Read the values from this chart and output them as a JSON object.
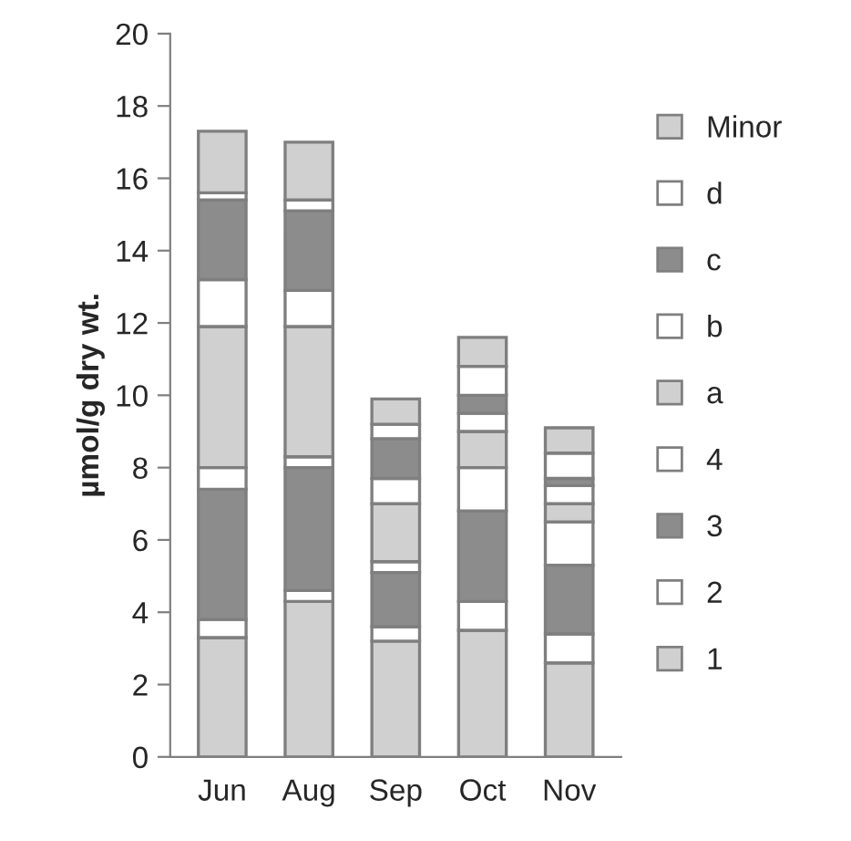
{
  "chart_data": {
    "type": "bar",
    "stacked": true,
    "ylabel": "µmol/g dry wt.",
    "categories": [
      "Jun",
      "Aug",
      "Sep",
      "Oct",
      "Nov"
    ],
    "series": [
      {
        "name": "1",
        "color": "#d0d0d0",
        "values": [
          3.3,
          4.3,
          3.2,
          3.5,
          2.6
        ]
      },
      {
        "name": "2",
        "color": "#ffffff",
        "values": [
          0.5,
          0.3,
          0.4,
          0.8,
          0.8
        ]
      },
      {
        "name": "3",
        "color": "#8c8c8c",
        "values": [
          3.6,
          3.4,
          1.5,
          2.5,
          1.9
        ]
      },
      {
        "name": "4",
        "color": "#ffffff",
        "values": [
          0.6,
          0.3,
          0.3,
          1.2,
          1.2
        ]
      },
      {
        "name": "a",
        "color": "#d0d0d0",
        "values": [
          3.9,
          3.6,
          1.6,
          1.0,
          0.5
        ]
      },
      {
        "name": "b",
        "color": "#ffffff",
        "values": [
          1.3,
          1.0,
          0.7,
          0.5,
          0.5
        ]
      },
      {
        "name": "c",
        "color": "#8c8c8c",
        "values": [
          2.2,
          2.2,
          1.1,
          0.5,
          0.2
        ]
      },
      {
        "name": "d",
        "color": "#ffffff",
        "values": [
          0.2,
          0.3,
          0.4,
          0.8,
          0.7
        ]
      },
      {
        "name": "Minor",
        "color": "#d0d0d0",
        "values": [
          1.7,
          1.6,
          0.7,
          0.8,
          0.7
        ]
      }
    ],
    "ylim": [
      0,
      20
    ],
    "yticks": [
      0,
      2,
      4,
      6,
      8,
      10,
      12,
      14,
      16,
      18,
      20
    ],
    "grid": false,
    "legend": "right"
  }
}
